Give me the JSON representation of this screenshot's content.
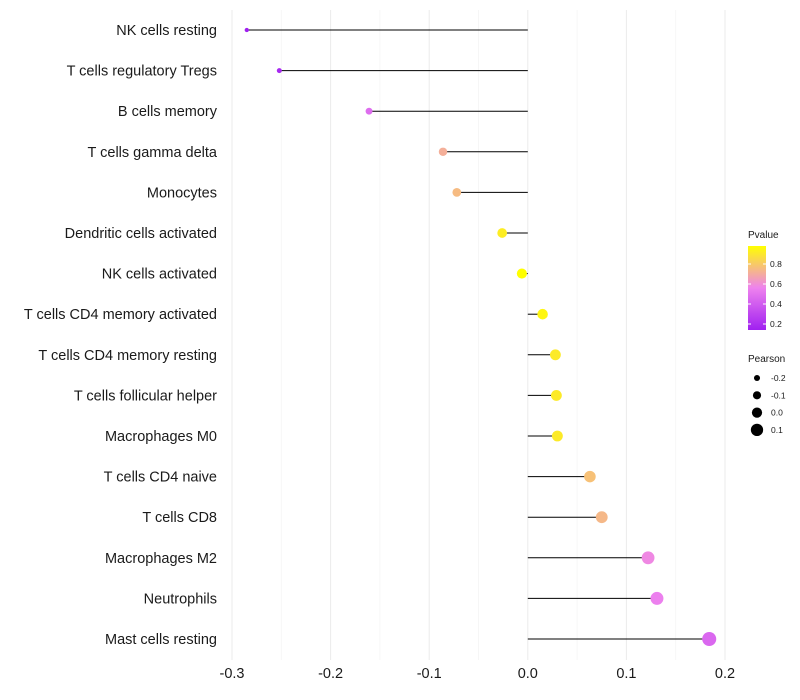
{
  "chart_data": {
    "type": "lollipop",
    "title": "",
    "xlabel": "",
    "ylabel": "",
    "xlim": [
      -0.3,
      0.2
    ],
    "x_ticks": [
      -0.3,
      -0.2,
      -0.1,
      0.0,
      0.1,
      0.2
    ],
    "x_tick_labels": [
      "-0.3",
      "-0.2",
      "-0.1",
      "0.0",
      "0.1",
      "0.2"
    ],
    "grid": true,
    "categories": [
      "NK cells resting",
      "T cells regulatory  Tregs",
      "B cells memory",
      "T cells gamma delta",
      "Monocytes",
      "Dendritic cells activated",
      "NK cells activated",
      "T cells CD4 memory activated",
      "T cells CD4 memory resting",
      "T cells follicular helper",
      "Macrophages M0",
      "T cells CD4 naive",
      "T cells CD8",
      "Macrophages M2",
      "Neutrophils",
      "Mast cells resting"
    ],
    "pearson": [
      -0.285,
      -0.252,
      -0.161,
      -0.086,
      -0.072,
      -0.026,
      -0.006,
      0.015,
      0.028,
      0.029,
      0.03,
      0.063,
      0.075,
      0.122,
      0.131,
      0.184
    ],
    "pvalue": [
      0.14,
      0.18,
      0.47,
      0.71,
      0.75,
      0.92,
      0.98,
      0.95,
      0.91,
      0.91,
      0.91,
      0.77,
      0.74,
      0.58,
      0.55,
      0.45
    ],
    "legend": {
      "color": {
        "title": "Pvalue",
        "ticks": [
          0.8,
          0.6,
          0.4,
          0.2
        ],
        "tick_labels": [
          "0.8",
          "0.6",
          "0.4",
          "0.2"
        ],
        "range": [
          0.14,
          0.98
        ],
        "low_color": "#a020f0",
        "mid_color": "#ee82ee",
        "high_color": "#ffff00"
      },
      "size": {
        "title": "Pearson",
        "values": [
          -0.2,
          -0.1,
          0.0,
          0.1
        ],
        "labels": [
          "-0.2",
          "-0.1",
          "0.0",
          "0.1"
        ]
      }
    }
  }
}
